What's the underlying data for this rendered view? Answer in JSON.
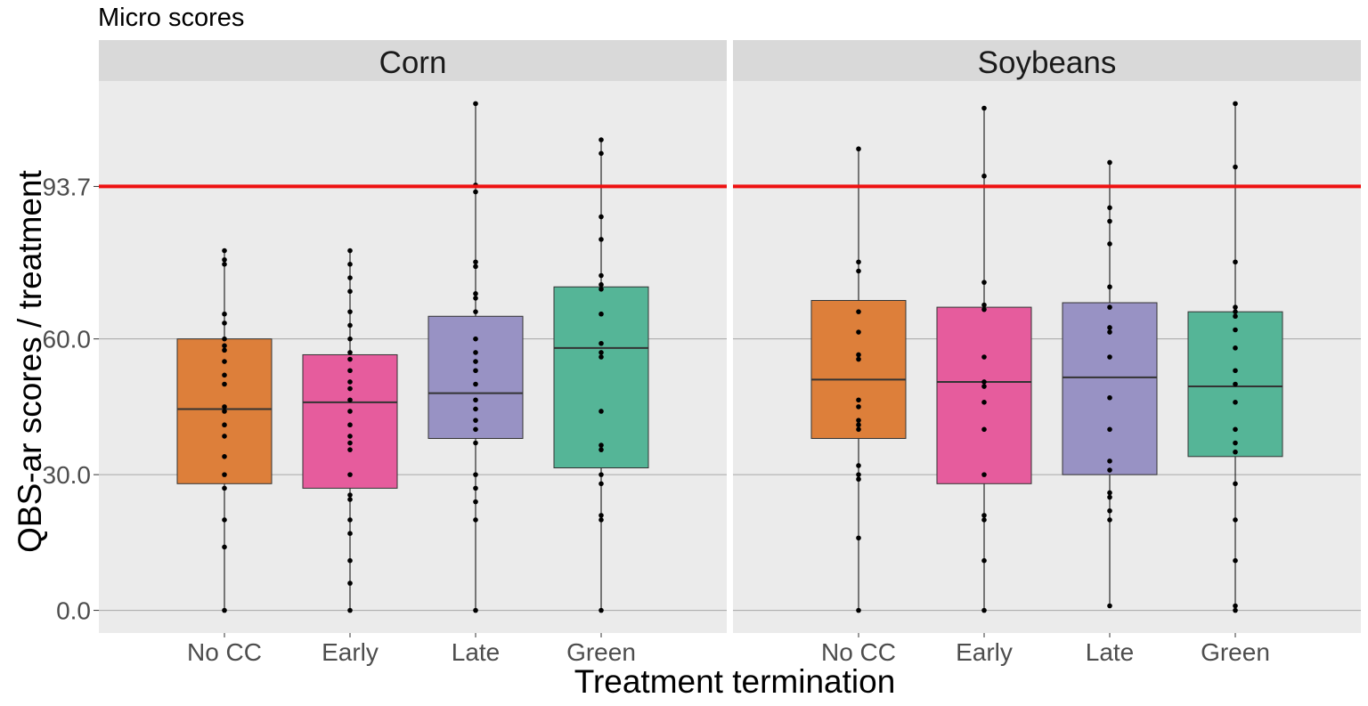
{
  "chart_data": {
    "type": "boxplot",
    "title": "Micro scores",
    "xlabel": "Treatment termination",
    "ylabel": "QBS-ar scores / treatment",
    "ylim": [
      -5,
      117
    ],
    "y_ticks": [
      "0.0",
      "30.0",
      "60.0",
      "93.7"
    ],
    "y_tick_values": [
      0,
      30,
      60,
      93.7
    ],
    "reference_line": {
      "value": 93.7,
      "color": "#ee1111"
    },
    "grid": true,
    "categories": [
      "No CC",
      "Early",
      "Late",
      "Green"
    ],
    "colors": {
      "No CC": "#DD7F3A",
      "Early": "#E65C9D",
      "Late": "#9892C4",
      "Green": "#55B597"
    },
    "panels": [
      {
        "name": "Corn",
        "boxes": [
          {
            "category": "No CC",
            "min": 0,
            "q1": 28,
            "median": 44.5,
            "q3": 60,
            "max": 79.5,
            "points": [
              79.5,
              77.5,
              76.5,
              65.5,
              63.5,
              60,
              58.5,
              57.5,
              55,
              52,
              50,
              45,
              44,
              41,
              38.5,
              34,
              30,
              27,
              20,
              14,
              0
            ]
          },
          {
            "category": "Early",
            "min": 0,
            "q1": 27,
            "median": 46,
            "q3": 56.5,
            "max": 79.5,
            "points": [
              79.5,
              76.5,
              73.5,
              70.5,
              66,
              63,
              60,
              57,
              55.5,
              53,
              50.5,
              49,
              46.5,
              44,
              41,
              38.5,
              37,
              35.5,
              30,
              25.5,
              24.5,
              20,
              17,
              11,
              6,
              0
            ]
          },
          {
            "category": "Late",
            "min": 0,
            "q1": 38,
            "median": 48,
            "q3": 65,
            "max": 112,
            "points": [
              112,
              94,
              92.5,
              77,
              76,
              70,
              69,
              66,
              60,
              57,
              55,
              53,
              50,
              46.5,
              44.5,
              42,
              40,
              37,
              30,
              27,
              24,
              20,
              0
            ]
          },
          {
            "category": "Green",
            "min": 0,
            "q1": 31.5,
            "median": 58,
            "q3": 71.5,
            "max": 104,
            "points": [
              104,
              101,
              87,
              82,
              74,
              72,
              71,
              65.5,
              59,
              57,
              56,
              44,
              36.5,
              35.5,
              30,
              28,
              21,
              20,
              0
            ]
          }
        ]
      },
      {
        "name": "Soybeans",
        "boxes": [
          {
            "category": "No CC",
            "min": 0,
            "q1": 38,
            "median": 51,
            "q3": 68.5,
            "max": 102,
            "points": [
              102,
              77,
              75,
              66,
              61.5,
              56.5,
              55.5,
              46.5,
              45,
              42,
              41,
              40,
              32,
              30,
              29,
              16,
              0
            ]
          },
          {
            "category": "Early",
            "min": 0,
            "q1": 28,
            "median": 50.5,
            "q3": 67,
            "max": 111,
            "points": [
              111,
              96,
              72.5,
              67.5,
              66.5,
              56,
              50.5,
              49.5,
              46,
              40,
              30,
              21,
              20,
              11,
              0
            ]
          },
          {
            "category": "Late",
            "min": 1,
            "q1": 30,
            "median": 51.5,
            "q3": 68,
            "max": 99,
            "points": [
              99,
              89,
              86,
              81,
              71.5,
              67,
              62.5,
              61.5,
              56,
              47,
              40,
              33,
              31,
              26,
              25,
              22,
              20,
              1
            ]
          },
          {
            "category": "Green",
            "min": 0,
            "q1": 34,
            "median": 49.5,
            "q3": 66,
            "max": 112,
            "points": [
              112,
              98,
              77,
              67,
              66,
              65,
              62,
              58,
              53,
              50,
              46,
              40,
              37,
              35,
              28,
              20,
              11,
              1,
              0
            ]
          }
        ]
      }
    ]
  }
}
